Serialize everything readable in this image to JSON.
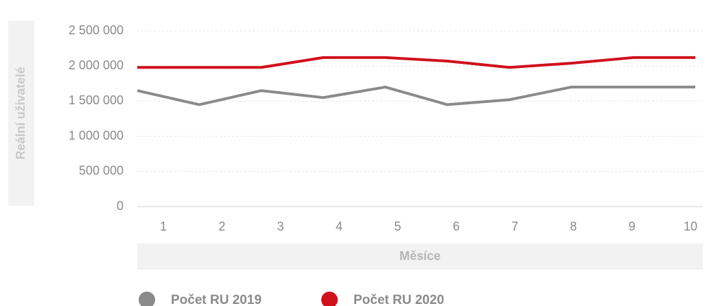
{
  "chart_data": {
    "type": "line",
    "x_label": "Měsíce",
    "y_label": "Reální uživatelé",
    "categories": [
      "1",
      "2",
      "3",
      "4",
      "5",
      "6",
      "7",
      "8",
      "9",
      "10"
    ],
    "series": [
      {
        "name": "Počet RU 2019",
        "color": "#8a8a8a",
        "values": [
          1650000,
          1450000,
          1650000,
          1550000,
          1700000,
          1450000,
          1520000,
          1700000,
          1700000,
          1700000
        ]
      },
      {
        "name": "Počet RU 2020",
        "color": "#d0101b",
        "values": [
          1980000,
          1980000,
          1980000,
          2120000,
          2120000,
          2070000,
          1980000,
          2040000,
          2120000,
          2120000
        ]
      }
    ],
    "ylim": [
      0,
      2500000
    ],
    "yticks": [
      {
        "value": 0,
        "label": "0"
      },
      {
        "value": 500000,
        "label": "500 000"
      },
      {
        "value": 1000000,
        "label": "1 000 000"
      },
      {
        "value": 1500000,
        "label": "1 500 000"
      },
      {
        "value": 2000000,
        "label": "2 000 000"
      },
      {
        "value": 2500000,
        "label": "2 500 000"
      }
    ],
    "grid": true
  }
}
